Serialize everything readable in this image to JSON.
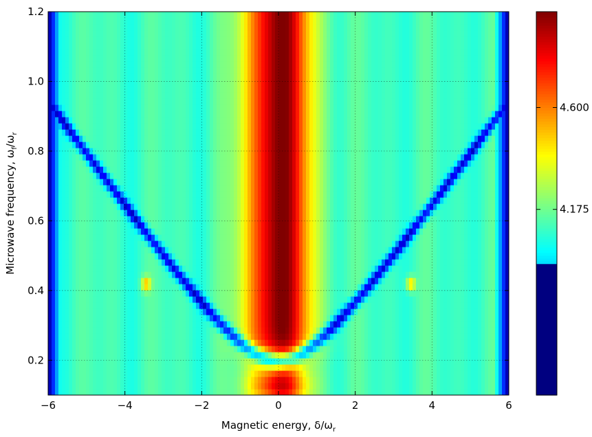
{
  "chart_data": {
    "type": "heatmap",
    "title": "",
    "xlabel": "Magnetic energy, δ/ω",
    "xlabel_sub": "r",
    "ylabel": "Microwave frequency, ω",
    "ylabel_sub1": "f",
    "ylabel_mid": "/ω",
    "ylabel_sub2": "r",
    "xlim": [
      -6,
      6
    ],
    "ylim": [
      0.1,
      1.2
    ],
    "x_ticks": [
      -6,
      -4,
      -2,
      0,
      2,
      4,
      6
    ],
    "x_tick_labels": [
      "−6",
      "−4",
      "−2",
      "0",
      "2",
      "4",
      "6"
    ],
    "y_ticks": [
      0.2,
      0.4,
      0.6,
      0.8,
      1.0,
      1.2
    ],
    "y_tick_labels": [
      "0.2",
      "0.4",
      "0.6",
      "0.8",
      "1.0",
      "1.2"
    ],
    "grid": true,
    "colormap": "jet",
    "colorbar": {
      "range": [
        3.4,
        5.0
      ],
      "ticks": [
        4.175,
        4.6
      ],
      "tick_labels": [
        "4.175",
        "4.600"
      ],
      "saturated_below": 3.95
    },
    "features": {
      "central_peak": {
        "x": 0.0,
        "max_value": 5.0,
        "min_frequency": 0.22
      },
      "secondary_peak": {
        "x": 0.0,
        "y": 0.13
      },
      "dip_curve": {
        "formula": "y = sqrt(0.2^2 + (x/6.5)^2)",
        "value": 3.95
      },
      "edge_x": [
        -6,
        6
      ],
      "edge_value": 3.4,
      "background_value": 4.1,
      "hot_spots": [
        {
          "x": -3.45,
          "y": 0.42
        },
        {
          "x": 3.45,
          "y": 0.42
        }
      ]
    }
  }
}
